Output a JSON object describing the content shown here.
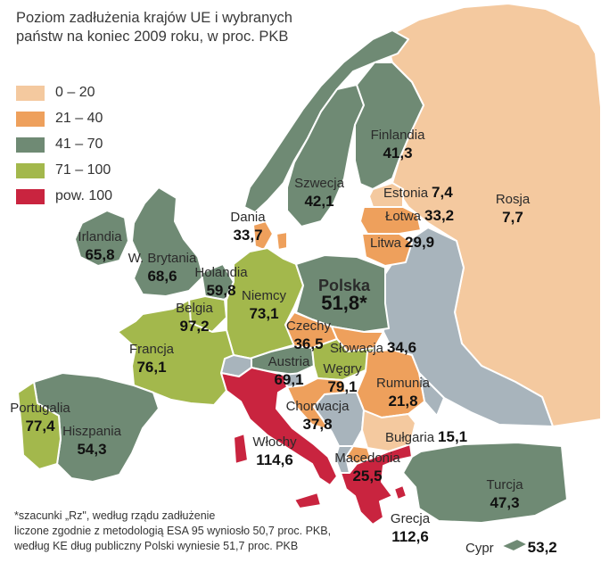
{
  "title": [
    "Poziom zadłużenia krajów UE i wybranych",
    "państw na koniec 2009 roku, w proc. PKB"
  ],
  "colors": {
    "sea": "#ffffff",
    "c0_20": "#f4c99f",
    "c21_40": "#eea05c",
    "c41_70": "#6f8a74",
    "c71_100": "#a3b84c",
    "c100plus": "#c9243f",
    "nodata": "#a8b4bc",
    "border": "#ffffff"
  },
  "legend": [
    {
      "label": "0 – 20",
      "color": "#f4c99f"
    },
    {
      "label": "21 – 40",
      "color": "#eea05c"
    },
    {
      "label": "41 – 70",
      "color": "#6f8a74"
    },
    {
      "label": "71 – 100",
      "color": "#a3b84c"
    },
    {
      "label": "pow. 100",
      "color": "#c9243f"
    }
  ],
  "countries": [
    {
      "name": "Finlandia",
      "value": "41,3"
    },
    {
      "name": "Szwecja",
      "value": "42,1"
    },
    {
      "name": "Estonia",
      "value": "7,4"
    },
    {
      "name": "Rosja",
      "value": "7,7"
    },
    {
      "name": "Łotwa",
      "value": "33,2"
    },
    {
      "name": "Dania",
      "value": "33,7"
    },
    {
      "name": "Litwa",
      "value": "29,9"
    },
    {
      "name": "Irlandia",
      "value": "65,8"
    },
    {
      "name": "W. Brytania",
      "value": "68,6"
    },
    {
      "name": "Holandia",
      "value": "59,8"
    },
    {
      "name": "Polska",
      "value": "51,8*"
    },
    {
      "name": "Niemcy",
      "value": "73,1"
    },
    {
      "name": "Belgia",
      "value": "97,2"
    },
    {
      "name": "Czechy",
      "value": "36,5"
    },
    {
      "name": "Słowacja",
      "value": "34,6"
    },
    {
      "name": "Francja",
      "value": "76,1"
    },
    {
      "name": "Austria",
      "value": "69,1"
    },
    {
      "name": "Węgry",
      "value": "79,1"
    },
    {
      "name": "Rumunia",
      "value": "21,8"
    },
    {
      "name": "Chorwacja",
      "value": "37,8"
    },
    {
      "name": "Portugalia",
      "value": "77,4"
    },
    {
      "name": "Hiszpania",
      "value": "54,3"
    },
    {
      "name": "Włochy",
      "value": "114,6"
    },
    {
      "name": "Bułgaria",
      "value": "15,1"
    },
    {
      "name": "Macedonia",
      "value": "25,5"
    },
    {
      "name": "Turcja",
      "value": "47,3"
    },
    {
      "name": "Grecja",
      "value": "112,6"
    },
    {
      "name": "Cypr",
      "value": "53,2"
    }
  ],
  "footnote": [
    "*szacunki „Rz\", według rządu zadłużenie",
    "liczone zgodnie z metodologią ESA 95 wyniosło 50,7 proc. PKB,",
    "według KE dług publiczny Polski wyniesie 51,7 proc. PKB"
  ]
}
